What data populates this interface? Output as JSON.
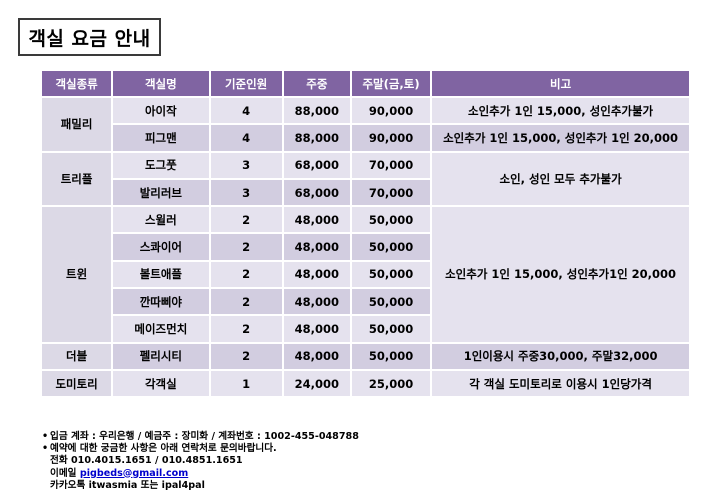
{
  "title": "객실 요금 안내",
  "table": {
    "headers": [
      "객실종류",
      "객실명",
      "기준인원",
      "주중",
      "주말(금,토)",
      "비고"
    ],
    "groups": [
      {
        "type": "패밀리",
        "rooms": [
          {
            "name": "아이작",
            "capacity": "4",
            "weekday": "88,000",
            "weekend": "90,000"
          },
          {
            "name": "피그맨",
            "capacity": "4",
            "weekday": "88,000",
            "weekend": "90,000"
          }
        ],
        "notes": [
          "소인추가 1인 15,000, 성인추가불가",
          "소인추가 1인 15,000, 성인추가 1인 20,000"
        ]
      },
      {
        "type": "트리플",
        "rooms": [
          {
            "name": "도그풋",
            "capacity": "3",
            "weekday": "68,000",
            "weekend": "70,000"
          },
          {
            "name": "발리러브",
            "capacity": "3",
            "weekday": "68,000",
            "weekend": "70,000"
          }
        ],
        "notes": [
          "소인, 성인 모두 추가불가"
        ]
      },
      {
        "type": "트윈",
        "rooms": [
          {
            "name": "스윌러",
            "capacity": "2",
            "weekday": "48,000",
            "weekend": "50,000"
          },
          {
            "name": "스콰이어",
            "capacity": "2",
            "weekday": "48,000",
            "weekend": "50,000"
          },
          {
            "name": "볼트애플",
            "capacity": "2",
            "weekday": "48,000",
            "weekend": "50,000"
          },
          {
            "name": "깐따삐야",
            "capacity": "2",
            "weekday": "48,000",
            "weekend": "50,000"
          },
          {
            "name": "메이즈먼치",
            "capacity": "2",
            "weekday": "48,000",
            "weekend": "50,000"
          }
        ],
        "notes": [
          "소인추가 1인 15,000, 성인추가1인 20,000"
        ]
      },
      {
        "type": "더블",
        "rooms": [
          {
            "name": "펠리시티",
            "capacity": "2",
            "weekday": "48,000",
            "weekend": "50,000"
          }
        ],
        "notes": [
          "1인이용시 주중30,000, 주말32,000"
        ]
      },
      {
        "type": "도미토리",
        "rooms": [
          {
            "name": "각객실",
            "capacity": "1",
            "weekday": "24,000",
            "weekend": "25,000"
          }
        ],
        "notes": [
          "각 객실 도미토리로 이용시 1인당가격"
        ]
      }
    ]
  },
  "info": {
    "bullet": "•",
    "account": "입금 계좌 : 우리은행 / 예금주 : 장미화 / 계좌번호 : 1002-455-048788",
    "inquiry": "예약에 대한 궁금한 사항은 아래 연락처로 문의바랍니다.",
    "phone": "전화 010.4015.1651 / 010.4851.1651",
    "email_label": "이메일",
    "email": "pigbeds@gmail.com",
    "kakao": "카카오톡 itwasmia 또는 ipal4pal"
  }
}
